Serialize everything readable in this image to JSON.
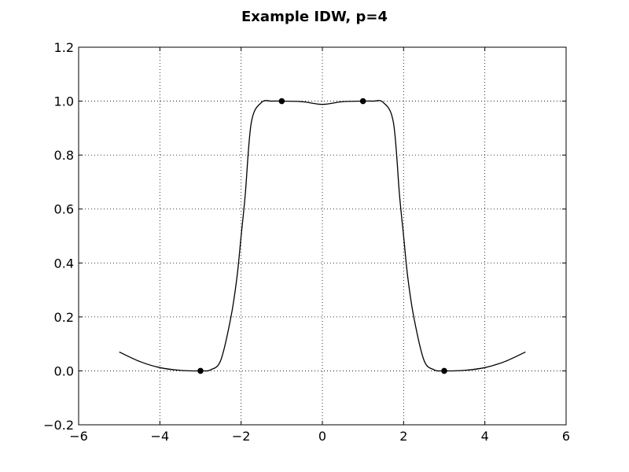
{
  "chart_data": {
    "type": "line",
    "title": "Example IDW, p=4",
    "xlabel": "",
    "ylabel": "",
    "xlim": [
      -6,
      6
    ],
    "ylim": [
      -0.2,
      1.2
    ],
    "xticks": [
      -6,
      -4,
      -2,
      0,
      2,
      4,
      6
    ],
    "xtick_labels": [
      "−6",
      "−4",
      "−2",
      "0",
      "2",
      "4",
      "6"
    ],
    "yticks": [
      -0.2,
      0.0,
      0.2,
      0.4,
      0.6,
      0.8,
      1.0,
      1.2
    ],
    "ytick_labels": [
      "−0.2",
      "0.0",
      "0.2",
      "0.4",
      "0.6",
      "0.8",
      "1.0",
      "1.2"
    ],
    "grid": true,
    "colors": {
      "line": "#000000",
      "points": "#000000",
      "grid": "#000000"
    },
    "series": [
      {
        "x": [
          -5.0,
          -4.5,
          -4.0,
          -3.5,
          -3.0,
          -2.75,
          -2.5,
          -2.25,
          -2.1,
          -2.0,
          -1.9,
          -1.75,
          -1.5,
          -1.25,
          -1.0,
          -0.5,
          0.0,
          0.5,
          1.0,
          1.25,
          1.5,
          1.75,
          1.9,
          2.0,
          2.1,
          2.25,
          2.5,
          2.75,
          3.0,
          3.5,
          4.0,
          4.5,
          5.0
        ],
        "y": [
          0.07,
          0.035,
          0.012,
          0.002,
          0.0,
          0.004,
          0.04,
          0.2,
          0.35,
          0.5,
          0.65,
          0.92,
          0.995,
          1.0,
          1.0,
          0.998,
          0.988,
          0.998,
          1.0,
          1.0,
          0.995,
          0.92,
          0.65,
          0.5,
          0.35,
          0.2,
          0.04,
          0.004,
          0.0,
          0.002,
          0.012,
          0.035,
          0.07
        ]
      }
    ],
    "points": {
      "x": [
        -3,
        -1,
        1,
        3
      ],
      "y": [
        0.0,
        1.0,
        1.0,
        0.0
      ]
    }
  }
}
